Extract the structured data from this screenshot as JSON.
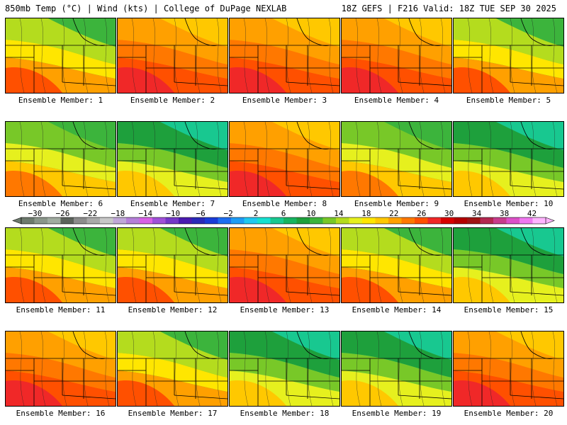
{
  "header": {
    "left": "850mb Temp (°C) | Wind (kts) | College of DuPage NEXLAB",
    "right": "18Z GEFS | F216 Valid: 18Z TUE SEP 30 2025"
  },
  "colorbar": {
    "ticks": [
      "-30",
      "-26",
      "-22",
      "-18",
      "-14",
      "-10",
      "-6",
      "-2",
      "2",
      "6",
      "10",
      "14",
      "18",
      "22",
      "26",
      "30",
      "34",
      "38",
      "42"
    ],
    "colors": [
      "#6d7a6d",
      "#8a968a",
      "#a0aca0",
      "#5c635c",
      "#8c8c8c",
      "#a9a9a9",
      "#c8c8c8",
      "#c0a7d8",
      "#b57fd8",
      "#d860e6",
      "#a050d8",
      "#7438c8",
      "#4a1ab0",
      "#2a2ab8",
      "#1a3cd8",
      "#1e6ef0",
      "#1e9cf4",
      "#20c8f0",
      "#16e0d0",
      "#18c890",
      "#16b460",
      "#1ea03c",
      "#3cb43c",
      "#78c828",
      "#b4dc1e",
      "#e6f01e",
      "#ffe600",
      "#ffc800",
      "#ffa000",
      "#ff7800",
      "#ff5000",
      "#f02828",
      "#d80000",
      "#b40000",
      "#a01414",
      "#b42850",
      "#c83c8c",
      "#dc50c8",
      "#f078f0",
      "#ffb4ff"
    ]
  },
  "members": [
    {
      "label": "Ensemble Member: 1",
      "theme": "warmw"
    },
    {
      "label": "Ensemble Member: 2",
      "theme": "hot"
    },
    {
      "label": "Ensemble Member: 3",
      "theme": "hot"
    },
    {
      "label": "Ensemble Member: 4",
      "theme": "hot"
    },
    {
      "label": "Ensemble Member: 5",
      "theme": "warmw"
    },
    {
      "label": "Ensemble Member: 6",
      "theme": "mixed"
    },
    {
      "label": "Ensemble Member: 7",
      "theme": "cool"
    },
    {
      "label": "Ensemble Member: 8",
      "theme": "hot"
    },
    {
      "label": "Ensemble Member: 9",
      "theme": "mixed"
    },
    {
      "label": "Ensemble Member: 10",
      "theme": "cool"
    },
    {
      "label": "Ensemble Member: 11",
      "theme": "warmw"
    },
    {
      "label": "Ensemble Member: 12",
      "theme": "warmw"
    },
    {
      "label": "Ensemble Member: 13",
      "theme": "hot"
    },
    {
      "label": "Ensemble Member: 14",
      "theme": "warmw"
    },
    {
      "label": "Ensemble Member: 15",
      "theme": "cool"
    },
    {
      "label": "Ensemble Member: 16",
      "theme": "hot"
    },
    {
      "label": "Ensemble Member: 17",
      "theme": "warmw"
    },
    {
      "label": "Ensemble Member: 18",
      "theme": "cool"
    },
    {
      "label": "Ensemble Member: 19",
      "theme": "cool"
    },
    {
      "label": "Ensemble Member: 20",
      "theme": "hot"
    }
  ]
}
